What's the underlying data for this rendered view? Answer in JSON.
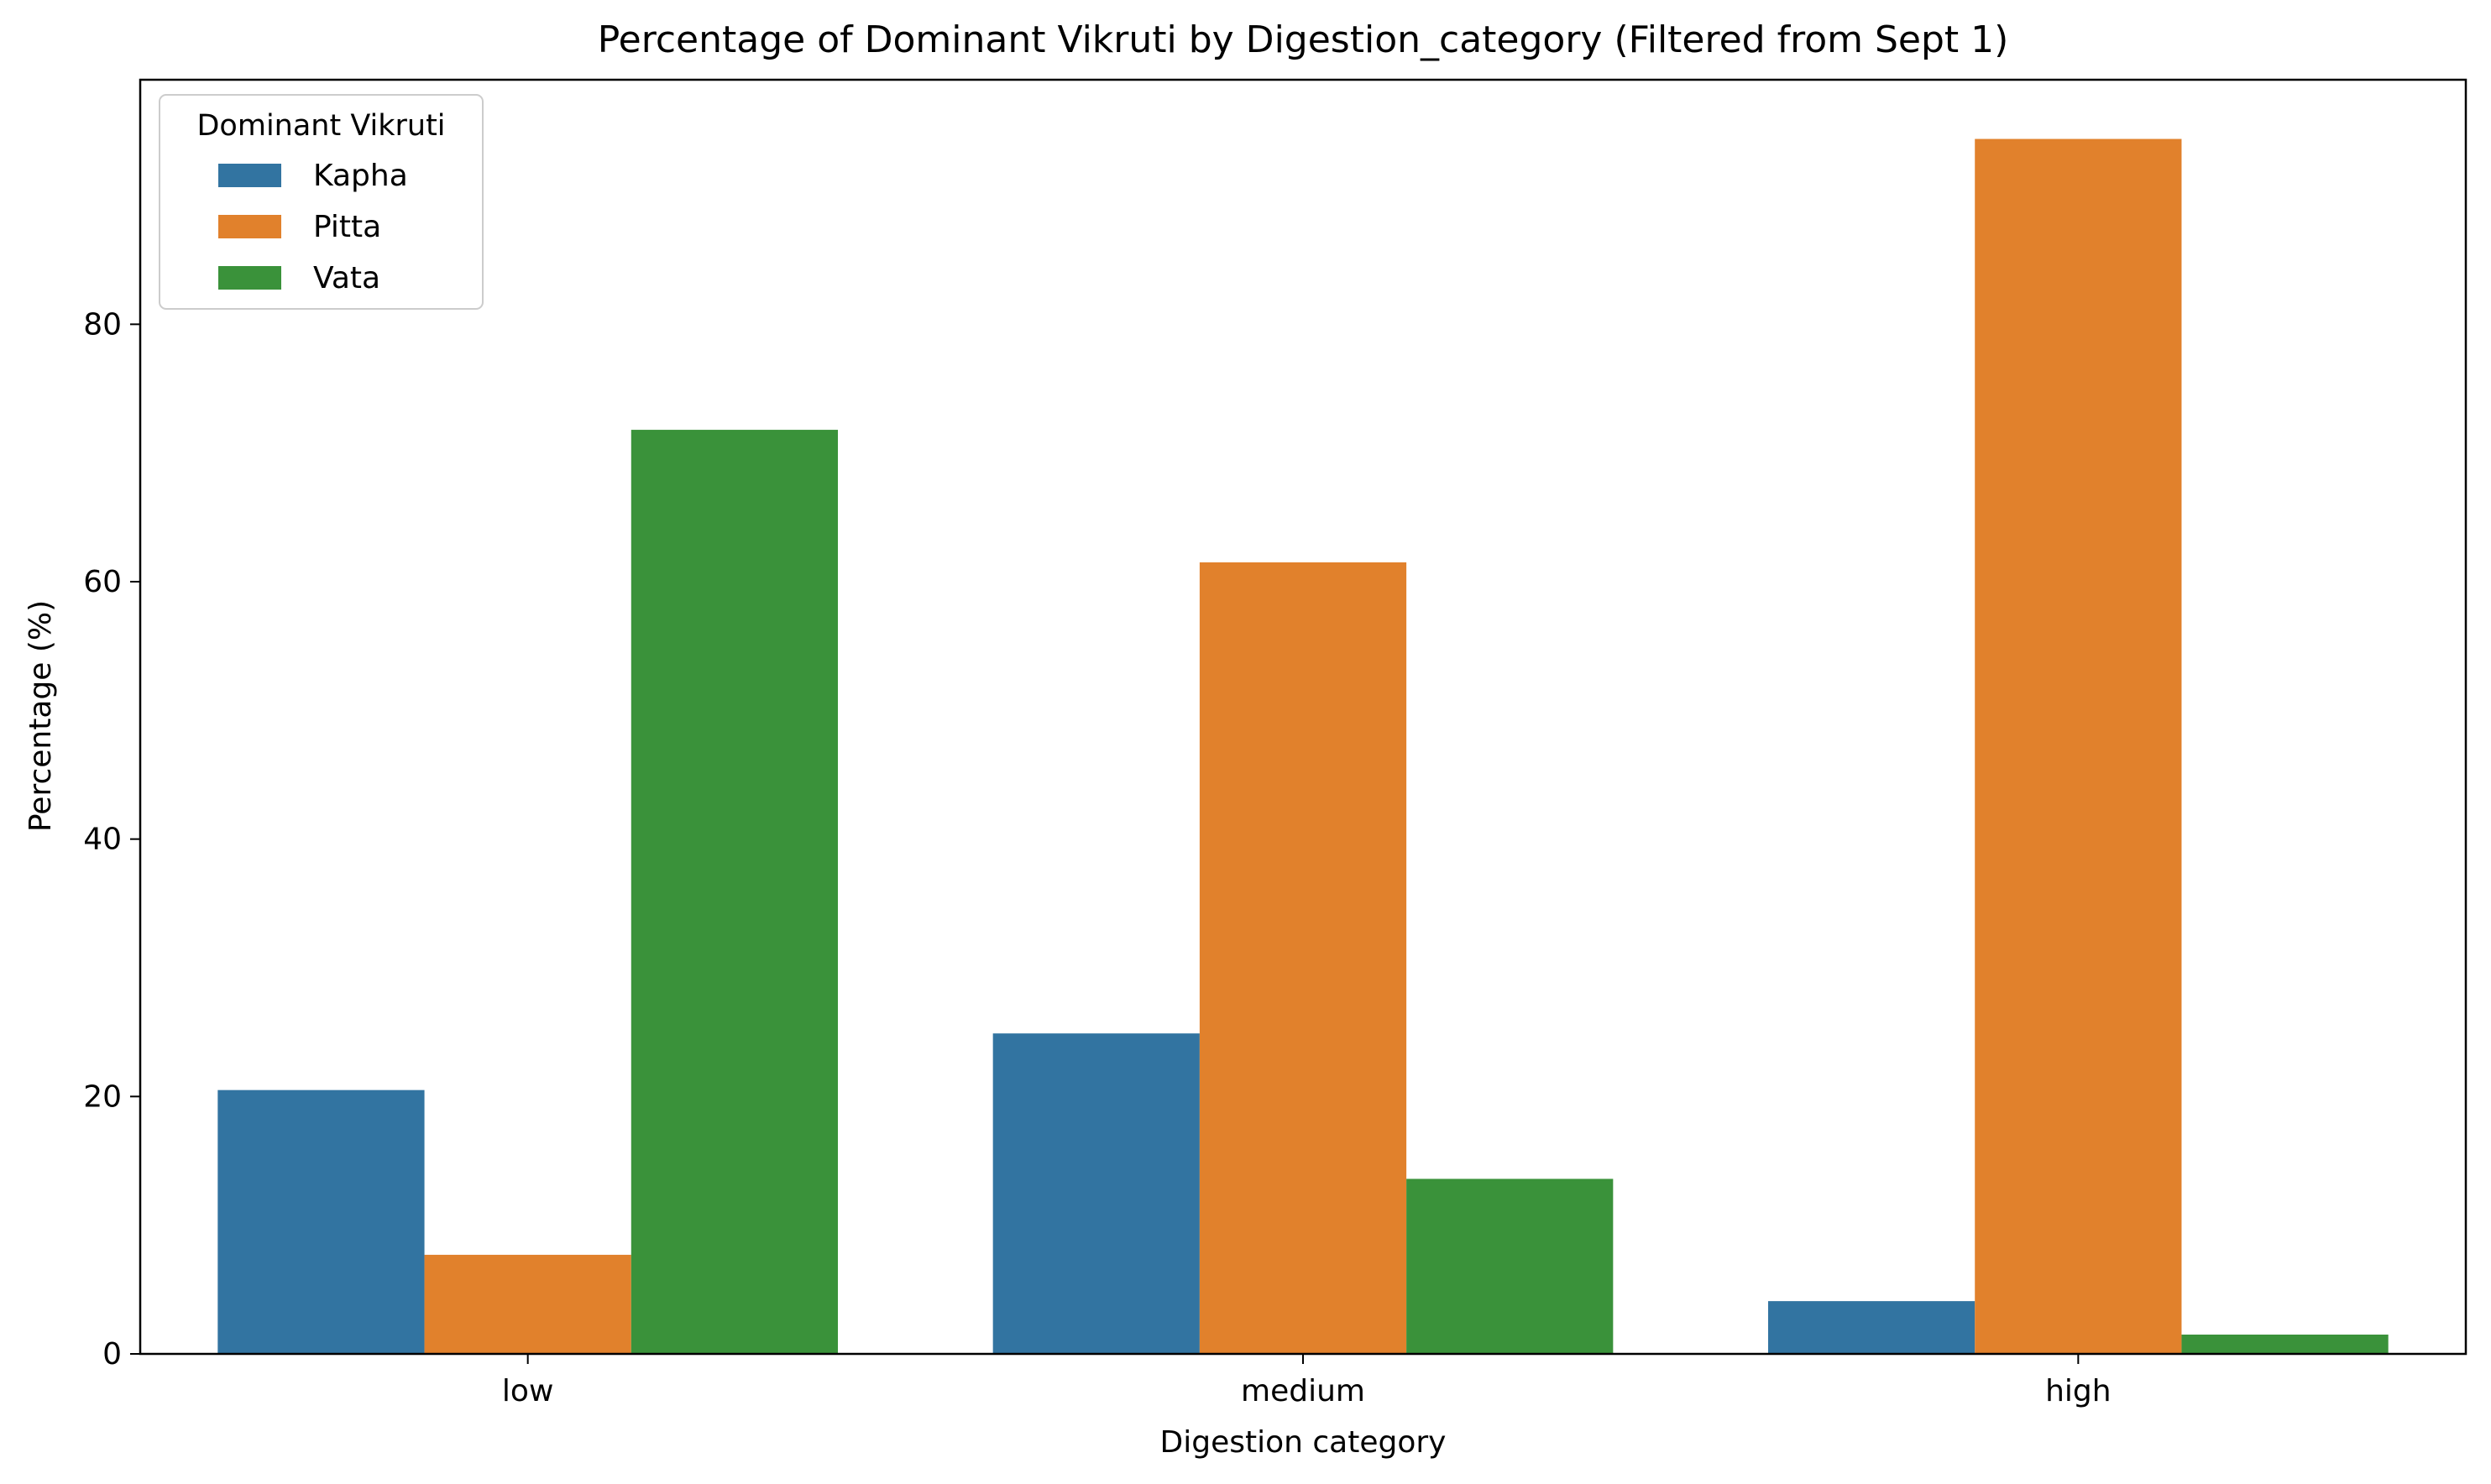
{
  "chart_data": {
    "type": "bar",
    "title": "Percentage of Dominant Vikruti by Digestion_category (Filtered from Sept 1)",
    "xlabel": "Digestion category",
    "ylabel": "Percentage (%)",
    "categories": [
      "low",
      "medium",
      "high"
    ],
    "ylim": [
      0,
      99
    ],
    "yticks": [
      0,
      20,
      40,
      60,
      80
    ],
    "grid": false,
    "legend": {
      "title": "Dominant Vikruti",
      "placement": "top-left"
    },
    "series": [
      {
        "name": "Kapha",
        "color": "#3274a1",
        "values": [
          20.5,
          24.9,
          4.1
        ]
      },
      {
        "name": "Pitta",
        "color": "#e1812c",
        "values": [
          7.7,
          61.5,
          94.4
        ]
      },
      {
        "name": "Vata",
        "color": "#3a923a",
        "values": [
          71.8,
          13.6,
          1.5
        ]
      }
    ]
  }
}
